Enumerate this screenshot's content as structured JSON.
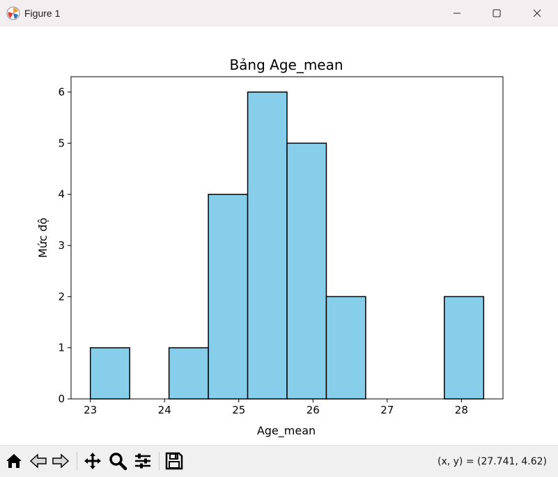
{
  "window": {
    "title": "Figure 1"
  },
  "toolbar": {
    "buttons": [
      {
        "icon": "home-icon"
      },
      {
        "icon": "back-arrow-icon"
      },
      {
        "icon": "forward-arrow-icon"
      },
      {
        "icon": "pan-icon"
      },
      {
        "icon": "zoom-icon"
      },
      {
        "icon": "subplots-icon"
      },
      {
        "icon": "save-icon"
      }
    ],
    "coords": "(x, y) = (27.741, 4.62)"
  },
  "colors": {
    "bar_fill": "#87ceeb",
    "bar_edge": "#000000"
  },
  "chart_data": {
    "type": "bar",
    "title": "Bảng Age_mean",
    "xlabel": "Age_mean",
    "ylabel": "Mức độ",
    "bins": [
      {
        "x0": 23.0,
        "x1": 23.53,
        "count": 1
      },
      {
        "x0": 23.53,
        "x1": 24.06,
        "count": 0
      },
      {
        "x0": 24.06,
        "x1": 24.59,
        "count": 1
      },
      {
        "x0": 24.59,
        "x1": 25.12,
        "count": 4
      },
      {
        "x0": 25.12,
        "x1": 25.65,
        "count": 6
      },
      {
        "x0": 25.65,
        "x1": 26.18,
        "count": 5
      },
      {
        "x0": 26.18,
        "x1": 26.71,
        "count": 2
      },
      {
        "x0": 26.71,
        "x1": 27.24,
        "count": 0
      },
      {
        "x0": 27.24,
        "x1": 27.77,
        "count": 0
      },
      {
        "x0": 27.77,
        "x1": 28.3,
        "count": 2
      }
    ],
    "xlim": [
      22.74,
      28.56
    ],
    "ylim": [
      0,
      6.3
    ],
    "xticks": [
      "23",
      "24",
      "25",
      "26",
      "27",
      "28"
    ],
    "xtick_values": [
      23,
      24,
      25,
      26,
      27,
      28
    ],
    "yticks": [
      "0",
      "1",
      "2",
      "3",
      "4",
      "5",
      "6"
    ],
    "ytick_values": [
      0,
      1,
      2,
      3,
      4,
      5,
      6
    ],
    "grid": false,
    "legend": false
  }
}
